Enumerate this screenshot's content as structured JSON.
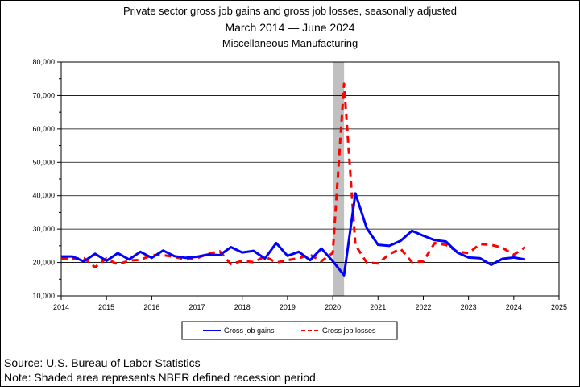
{
  "chart_data": {
    "type": "line",
    "title": "Private sector gross job gains and gross job losses, seasonally adjusted",
    "subtitle_start": "March 2014",
    "subtitle_dash": "—",
    "subtitle_end": "June 2024",
    "industry": "Miscellaneous Manufacturing",
    "xlim": [
      2014,
      2025
    ],
    "ylim": [
      10000,
      80000
    ],
    "x_ticks": [
      "2014",
      "2015",
      "2016",
      "2017",
      "2018",
      "2019",
      "2020",
      "2021",
      "2022",
      "2023",
      "2024",
      "2025"
    ],
    "y_ticks": [
      "10,000",
      "20,000",
      "30,000",
      "40,000",
      "50,000",
      "60,000",
      "70,000",
      "80,000"
    ],
    "recession": {
      "start": 2020.0,
      "end": 2020.25
    },
    "x": [
      2014.0,
      2014.25,
      2014.5,
      2014.75,
      2015.0,
      2015.25,
      2015.5,
      2015.75,
      2016.0,
      2016.25,
      2016.5,
      2016.75,
      2017.0,
      2017.25,
      2017.5,
      2017.75,
      2018.0,
      2018.25,
      2018.5,
      2018.75,
      2019.0,
      2019.25,
      2019.5,
      2019.75,
      2020.0,
      2020.25,
      2020.5,
      2020.75,
      2021.0,
      2021.25,
      2021.5,
      2021.75,
      2022.0,
      2022.25,
      2022.5,
      2022.75,
      2023.0,
      2023.25,
      2023.5,
      2023.75,
      2024.0,
      2024.25
    ],
    "series": [
      {
        "name": "Gross job gains",
        "color": "#0000ff",
        "dash": "solid",
        "values": [
          21800,
          21800,
          20300,
          22600,
          20500,
          22800,
          20900,
          23200,
          21400,
          23600,
          21900,
          21400,
          21700,
          22400,
          22200,
          24600,
          23000,
          23500,
          21200,
          25800,
          22000,
          23200,
          20700,
          24200,
          20400,
          16200,
          40700,
          30300,
          25300,
          25000,
          26500,
          29500,
          28000,
          26700,
          26300,
          23000,
          21500,
          21300,
          19300,
          21100,
          21500,
          20900
        ]
      },
      {
        "name": "Gross job losses",
        "color": "#ff0000",
        "dash": "dashed",
        "values": [
          21100,
          21100,
          21300,
          18600,
          21200,
          19400,
          20600,
          20800,
          22200,
          22200,
          21700,
          20900,
          21300,
          22600,
          23400,
          19500,
          20500,
          20100,
          21800,
          20000,
          20700,
          21300,
          22300,
          20400,
          22900,
          73500,
          25200,
          20000,
          19700,
          22500,
          24100,
          20100,
          20300,
          25800,
          25300,
          23300,
          22800,
          25500,
          25300,
          24400,
          22300,
          24600
        ]
      }
    ],
    "legend": {
      "position": "bottom-center"
    }
  },
  "footer": {
    "source": "Source: U.S. Bureau of Labor Statistics",
    "note": "Note: Shaded area represents NBER defined recession period."
  }
}
